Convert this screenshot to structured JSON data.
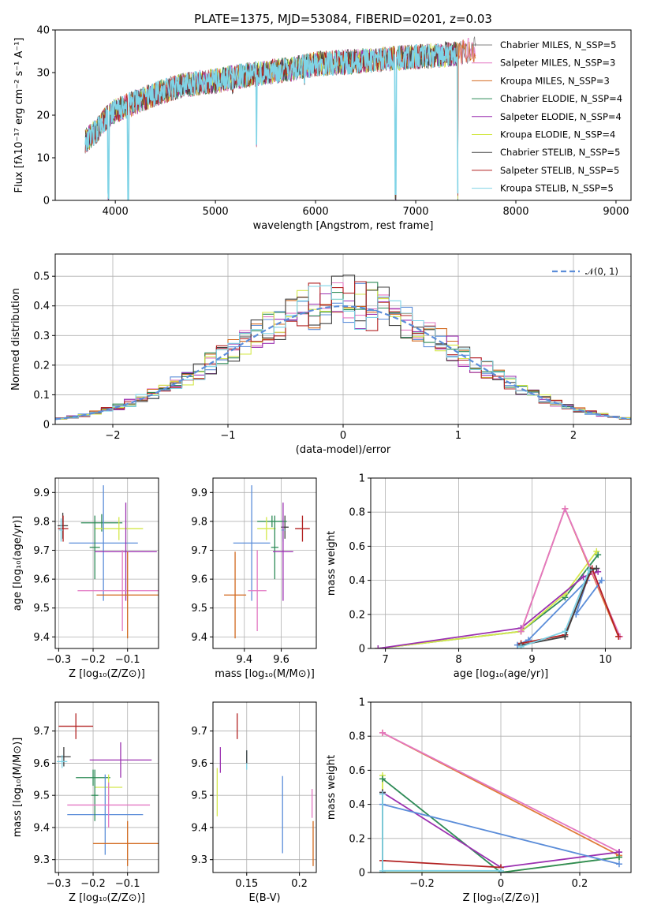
{
  "figure_title": "PLATE=1375, MJD=53084, FIBERID=0201, z=0.03",
  "colors": {
    "chabrier_miles": "#808080",
    "salpeter_miles": "#e377c2",
    "kroupa_miles": "#d2691e",
    "chabrier_elodie": "#2e8b57",
    "salpeter_elodie": "#9b30b0",
    "kroupa_elodie": "#d4e84a",
    "chabrier_stelib": "#404040",
    "salpeter_stelib": "#b22222",
    "kroupa_stelib": "#7fd3e6",
    "normal": "#5b8dd9",
    "green_age": "#2e8b57",
    "orange_age": "#e07b39",
    "blue_age": "#5b8dd9"
  },
  "chart_data": [
    {
      "id": "spectrum",
      "type": "line",
      "title": "PLATE=1375, MJD=53084, FIBERID=0201, z=0.03",
      "xlabel": "wavelength [Angstrom, rest frame]",
      "ylabel": "Flux [fλ10⁻¹⁷ erg cm⁻² s⁻¹ A⁻¹]",
      "xlim": [
        3400,
        9150
      ],
      "ylim": [
        0,
        40
      ],
      "xticks": [
        4000,
        5000,
        6000,
        7000,
        8000,
        9000
      ],
      "yticks": [
        0,
        10,
        20,
        30,
        40
      ],
      "x_range_data": [
        3700,
        7420
      ],
      "legend": [
        {
          "label": "Chabrier MILES, N_SSP=5",
          "color_key": "chabrier_miles"
        },
        {
          "label": "Salpeter MILES, N_SSP=3",
          "color_key": "salpeter_miles"
        },
        {
          "label": "Kroupa MILES, N_SSP=3",
          "color_key": "kroupa_miles"
        },
        {
          "label": "Chabrier ELODIE, N_SSP=4",
          "color_key": "chabrier_elodie"
        },
        {
          "label": "Salpeter ELODIE, N_SSP=4",
          "color_key": "salpeter_elodie"
        },
        {
          "label": "Kroupa ELODIE, N_SSP=4",
          "color_key": "kroupa_elodie"
        },
        {
          "label": "Chabrier STELIB, N_SSP=5",
          "color_key": "chabrier_stelib"
        },
        {
          "label": "Salpeter STELIB, N_SSP=5",
          "color_key": "salpeter_stelib"
        },
        {
          "label": "Kroupa STELIB, N_SSP=5",
          "color_key": "kroupa_stelib"
        }
      ],
      "continuum": [
        [
          3700,
          14
        ],
        [
          3800,
          16
        ],
        [
          3900,
          19
        ],
        [
          4000,
          21
        ],
        [
          4200,
          23
        ],
        [
          4400,
          25
        ],
        [
          4600,
          26.5
        ],
        [
          4800,
          27.5
        ],
        [
          5000,
          28
        ],
        [
          5200,
          29
        ],
        [
          5500,
          30
        ],
        [
          5800,
          31
        ],
        [
          6000,
          32
        ],
        [
          6300,
          32.5
        ],
        [
          6600,
          33
        ],
        [
          6900,
          33.5
        ],
        [
          7200,
          34
        ],
        [
          7420,
          34.5
        ],
        [
          7600,
          35.5
        ]
      ],
      "dips": [
        [
          3930,
          0
        ],
        [
          4130,
          0
        ],
        [
          5410,
          12
        ],
        [
          6800,
          0
        ],
        [
          7420,
          0
        ],
        [
          5175,
          25
        ],
        [
          5890,
          27
        ]
      ]
    },
    {
      "id": "residuals",
      "type": "histogram",
      "xlabel": "(data-model)/error",
      "ylabel": "Normed distribution",
      "xlim": [
        -2.5,
        2.5
      ],
      "ylim": [
        0,
        0.575
      ],
      "xticks": [
        -2,
        -1,
        0,
        1,
        2
      ],
      "yticks": [
        0.0,
        0.1,
        0.2,
        0.3,
        0.4,
        0.5
      ],
      "legend_label": "𝒩(0, 1)",
      "bin_width": 0.1
    },
    {
      "id": "z_age",
      "type": "errorbar",
      "xlabel": "Z [log₁₀(Z/Z⊙)]",
      "ylabel": "age  [log₁₀(age/yr)]",
      "xlim": [
        -0.31,
        -0.01
      ],
      "ylim": [
        9.36,
        9.95
      ],
      "xticks": [
        -0.3,
        -0.2,
        -0.1
      ],
      "yticks": [
        9.4,
        9.5,
        9.6,
        9.7,
        9.8,
        9.9
      ],
      "points": [
        {
          "x": -0.288,
          "xerr": 0.015,
          "y": 9.785,
          "yerr": 0.045,
          "c": "chabrier_stelib"
        },
        {
          "x": -0.287,
          "xerr": 0.015,
          "y": 9.775,
          "yerr": 0.045,
          "c": "salpeter_stelib"
        },
        {
          "x": -0.293,
          "xerr": 0.005,
          "y": 9.77,
          "yerr": 0.04,
          "c": "kroupa_stelib"
        },
        {
          "x": -0.175,
          "xerr": 0.06,
          "y": 9.795,
          "yerr": 0.03,
          "c": "chabrier_elodie"
        },
        {
          "x": -0.125,
          "xerr": 0.07,
          "y": 9.775,
          "yerr": 0.04,
          "c": "kroupa_elodie"
        },
        {
          "x": -0.17,
          "xerr": 0.1,
          "y": 9.725,
          "yerr": 0.2,
          "c": "blue_age"
        },
        {
          "x": -0.195,
          "xerr": 0.015,
          "y": 9.71,
          "yerr": 0.11,
          "c": "green_age"
        },
        {
          "x": -0.105,
          "xerr": 0.09,
          "y": 9.695,
          "yerr": 0.17,
          "c": "salpeter_elodie"
        },
        {
          "x": -0.115,
          "xerr": 0.13,
          "y": 9.56,
          "yerr": 0.14,
          "c": "salpeter_miles"
        },
        {
          "x": -0.1,
          "xerr": 0.09,
          "y": 9.545,
          "yerr": 0.15,
          "c": "kroupa_miles"
        }
      ]
    },
    {
      "id": "mass_age",
      "type": "errorbar",
      "xlabel": "mass [log₁₀(M/M⊙)]",
      "ylabel": "",
      "xlim": [
        9.23,
        9.79
      ],
      "ylim": [
        9.36,
        9.95
      ],
      "xticks": [
        9.4,
        9.6
      ],
      "yticks": [
        9.4,
        9.5,
        9.6,
        9.7,
        9.8,
        9.9
      ],
      "points": [
        {
          "x": 9.715,
          "xerr": 0.04,
          "y": 9.775,
          "yerr": 0.045,
          "c": "salpeter_stelib"
        },
        {
          "x": 9.62,
          "xerr": 0.02,
          "y": 9.78,
          "yerr": 0.04,
          "c": "chabrier_stelib"
        },
        {
          "x": 9.61,
          "xerr": 0.01,
          "y": 9.77,
          "yerr": 0.04,
          "c": "kroupa_stelib"
        },
        {
          "x": 9.55,
          "xerr": 0.08,
          "y": 9.8,
          "yerr": 0.02,
          "c": "chabrier_elodie"
        },
        {
          "x": 9.52,
          "xerr": 0.05,
          "y": 9.775,
          "yerr": 0.04,
          "c": "kroupa_elodie"
        },
        {
          "x": 9.44,
          "xerr": 0.1,
          "y": 9.725,
          "yerr": 0.2,
          "c": "blue_age"
        },
        {
          "x": 9.565,
          "xerr": 0.02,
          "y": 9.71,
          "yerr": 0.11,
          "c": "green_age"
        },
        {
          "x": 9.61,
          "xerr": 0.055,
          "y": 9.695,
          "yerr": 0.17,
          "c": "salpeter_elodie"
        },
        {
          "x": 9.47,
          "xerr": 0.05,
          "y": 9.56,
          "yerr": 0.14,
          "c": "salpeter_miles"
        },
        {
          "x": 9.35,
          "xerr": 0.06,
          "y": 9.545,
          "yerr": 0.15,
          "c": "kroupa_miles"
        }
      ]
    },
    {
      "id": "age_weight",
      "type": "line",
      "xlabel": "age  [log₁₀(age/yr)]",
      "ylabel": "mass weight",
      "xlim": [
        6.8,
        10.35
      ],
      "ylim": [
        0,
        1.0
      ],
      "xticks": [
        7,
        8,
        9,
        10
      ],
      "yticks": [
        0.0,
        0.2,
        0.4,
        0.6,
        0.8,
        1.0
      ],
      "series": [
        {
          "c": "chabrier_elodie",
          "pts": [
            [
              6.9,
              0.0
            ],
            [
              8.85,
              0.1
            ],
            [
              9.45,
              0.3
            ],
            [
              9.9,
              0.55
            ]
          ]
        },
        {
          "c": "kroupa_elodie",
          "pts": [
            [
              6.9,
              0.0
            ],
            [
              8.85,
              0.1
            ],
            [
              9.45,
              0.32
            ],
            [
              9.88,
              0.57
            ]
          ]
        },
        {
          "c": "salpeter_elodie",
          "pts": [
            [
              6.9,
              0.0
            ],
            [
              8.85,
              0.12
            ],
            [
              9.7,
              0.42
            ],
            [
              9.9,
              0.45
            ]
          ]
        },
        {
          "c": "orange_age",
          "pts": [
            [
              8.85,
              0.1
            ],
            [
              9.45,
              0.82
            ],
            [
              10.18,
              0.07
            ]
          ]
        },
        {
          "c": "salpeter_miles",
          "pts": [
            [
              8.85,
              0.1
            ],
            [
              9.45,
              0.82
            ],
            [
              10.2,
              0.07
            ]
          ]
        },
        {
          "c": "blue_age",
          "pts": [
            [
              8.8,
              0.02
            ],
            [
              8.95,
              0.05
            ],
            [
              9.75,
              0.4
            ],
            [
              9.6,
              0.2
            ],
            [
              9.95,
              0.4
            ]
          ]
        },
        {
          "c": "salpeter_stelib",
          "pts": [
            [
              8.85,
              0.03
            ],
            [
              9.45,
              0.08
            ],
            [
              9.82,
              0.47
            ],
            [
              10.18,
              0.07
            ]
          ]
        },
        {
          "c": "chabrier_stelib",
          "pts": [
            [
              8.85,
              0.02
            ],
            [
              9.45,
              0.07
            ],
            [
              9.8,
              0.46
            ],
            [
              9.88,
              0.47
            ]
          ]
        },
        {
          "c": "kroupa_stelib",
          "pts": [
            [
              8.85,
              0.01
            ],
            [
              9.45,
              0.1
            ],
            [
              9.78,
              0.46
            ]
          ]
        }
      ]
    },
    {
      "id": "z_mass",
      "type": "errorbar",
      "xlabel": "Z [log₁₀(Z/Z⊙)]",
      "ylabel": "mass [log₁₀(M/M⊙)]",
      "xlim": [
        -0.31,
        -0.01
      ],
      "ylim": [
        9.26,
        9.79
      ],
      "xticks": [
        -0.3,
        -0.2,
        -0.1
      ],
      "yticks": [
        9.3,
        9.4,
        9.5,
        9.6,
        9.7
      ],
      "points": [
        {
          "x": -0.25,
          "xerr": 0.05,
          "y": 9.715,
          "yerr": 0.04,
          "c": "salpeter_stelib"
        },
        {
          "x": -0.285,
          "xerr": 0.02,
          "y": 9.62,
          "yerr": 0.03,
          "c": "chabrier_stelib"
        },
        {
          "x": -0.29,
          "xerr": 0.015,
          "y": 9.605,
          "yerr": 0.02,
          "c": "kroupa_stelib"
        },
        {
          "x": -0.2,
          "xerr": 0.05,
          "y": 9.555,
          "yerr": 0.025,
          "c": "chabrier_elodie"
        },
        {
          "x": -0.155,
          "xerr": 0.04,
          "y": 9.525,
          "yerr": 0.04,
          "c": "kroupa_elodie"
        },
        {
          "x": -0.165,
          "xerr": 0.11,
          "y": 9.44,
          "yerr": 0.125,
          "c": "blue_age"
        },
        {
          "x": -0.195,
          "xerr": 0.01,
          "y": 9.5,
          "yerr": 0.08,
          "c": "green_age"
        },
        {
          "x": -0.12,
          "xerr": 0.09,
          "y": 9.61,
          "yerr": 0.055,
          "c": "salpeter_elodie"
        },
        {
          "x": -0.155,
          "xerr": 0.12,
          "y": 9.47,
          "yerr": 0.07,
          "c": "salpeter_miles"
        },
        {
          "x": -0.1,
          "xerr": 0.1,
          "y": 9.35,
          "yerr": 0.07,
          "c": "kroupa_miles"
        }
      ]
    },
    {
      "id": "ebv_mass",
      "type": "errorbar",
      "xlabel": "E(B-V)",
      "ylabel": "",
      "xlim": [
        0.118,
        0.216
      ],
      "ylim": [
        9.26,
        9.79
      ],
      "xticks": [
        0.15,
        0.2
      ],
      "yticks": [
        9.3,
        9.4,
        9.5,
        9.6,
        9.7
      ],
      "points": [
        {
          "x": 0.141,
          "y": 9.715,
          "yerr": 0.04,
          "c": "salpeter_stelib"
        },
        {
          "x": 0.125,
          "y": 9.61,
          "yerr": 0.04,
          "c": "salpeter_elodie"
        },
        {
          "x": 0.122,
          "y": 9.51,
          "yerr": 0.075,
          "c": "kroupa_elodie"
        },
        {
          "x": 0.15,
          "y": 9.61,
          "yerr": 0.03,
          "c": "kroupa_stelib"
        },
        {
          "x": 0.15,
          "y": 9.62,
          "yerr": 0.02,
          "c": "chabrier_stelib"
        },
        {
          "x": 0.184,
          "y": 9.44,
          "yerr": 0.12,
          "c": "blue_age"
        },
        {
          "x": 0.212,
          "y": 9.475,
          "yerr": 0.045,
          "c": "salpeter_miles"
        },
        {
          "x": 0.213,
          "y": 9.35,
          "yerr": 0.07,
          "c": "kroupa_miles"
        }
      ]
    },
    {
      "id": "z_weight",
      "type": "line",
      "xlabel": "Z [log₁₀(Z/Z⊙)]",
      "ylabel": "mass weight",
      "xlim": [
        -0.33,
        0.33
      ],
      "ylim": [
        0,
        1.0
      ],
      "xticks": [
        -0.2,
        0.0,
        0.2
      ],
      "yticks": [
        0.0,
        0.2,
        0.4,
        0.6,
        0.8,
        1.0
      ],
      "series": [
        {
          "c": "orange_age",
          "pts": [
            [
              -0.3,
              0.82
            ],
            [
              0.3,
              0.1
            ]
          ]
        },
        {
          "c": "salpeter_miles",
          "pts": [
            [
              -0.3,
              0.82
            ],
            [
              0.3,
              0.12
            ]
          ]
        },
        {
          "c": "kroupa_elodie",
          "pts": [
            [
              -0.3,
              0.57
            ],
            [
              -0.3,
              0.0
            ],
            [
              0.0,
              0.0
            ],
            [
              0.3,
              0.09
            ]
          ]
        },
        {
          "c": "chabrier_elodie",
          "pts": [
            [
              -0.3,
              0.55
            ],
            [
              0.0,
              0.0
            ],
            [
              0.3,
              0.09
            ]
          ]
        },
        {
          "c": "salpeter_elodie",
          "pts": [
            [
              -0.3,
              0.47
            ],
            [
              0.0,
              0.03
            ],
            [
              0.3,
              0.12
            ]
          ]
        },
        {
          "c": "blue_age",
          "pts": [
            [
              -0.3,
              0.4
            ],
            [
              0.3,
              0.05
            ]
          ]
        },
        {
          "c": "salpeter_stelib",
          "pts": [
            [
              -0.3,
              0.07
            ],
            [
              0.0,
              0.03
            ]
          ]
        },
        {
          "c": "chabrier_stelib",
          "pts": [
            [
              -0.3,
              0.47
            ],
            [
              -0.3,
              0.0
            ]
          ]
        },
        {
          "c": "kroupa_stelib",
          "pts": [
            [
              -0.3,
              0.46
            ],
            [
              -0.3,
              0.01
            ],
            [
              0.0,
              0.01
            ]
          ]
        }
      ]
    }
  ]
}
